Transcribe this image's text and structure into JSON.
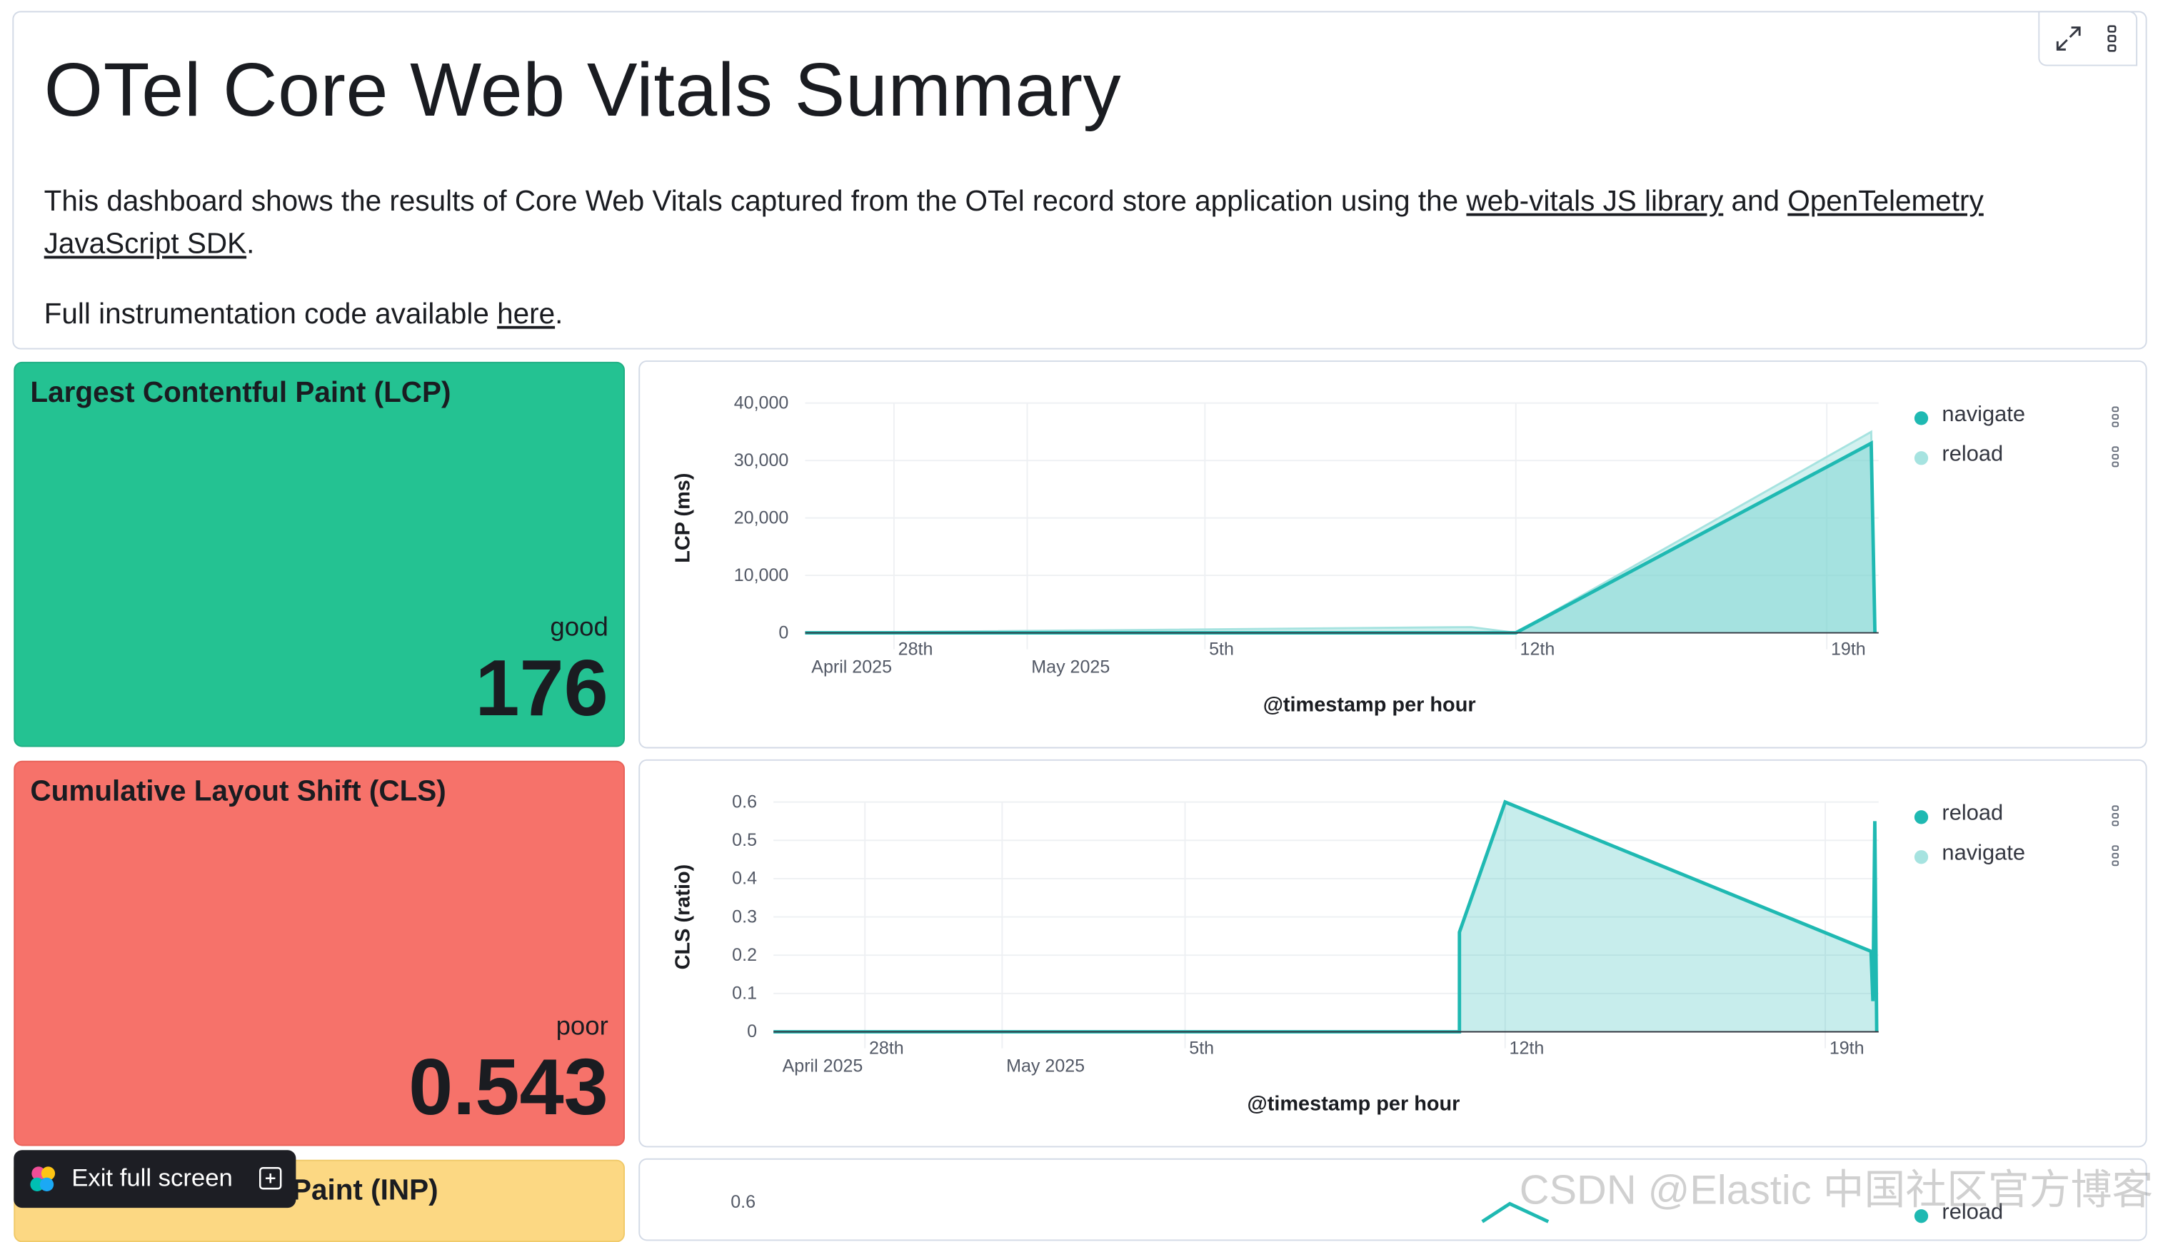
{
  "markdown": {
    "title": "OTel Core Web Vitals Summary",
    "para_prefix": "This dashboard shows the results of Core Web Vitals captured from the OTel record store application using the ",
    "link1": "web-vitals JS library",
    "para_mid": " and ",
    "link2": "OpenTelemetry JavaScript SDK",
    "para_suffix": ".",
    "para2_prefix": "Full instrumentation code available ",
    "link3": "here",
    "para2_suffix": "."
  },
  "panel_actions": {
    "maximize_icon": "maximize-icon",
    "options_icon": "vertical-dots-icon"
  },
  "metrics": [
    {
      "title": "Largest Contentful Paint (LCP)",
      "rating": "good",
      "value": "176",
      "color": "#24c292"
    },
    {
      "title": "Cumulative Layout Shift (CLS)",
      "rating": "poor",
      "value": "0.543",
      "color": "#f6726a"
    },
    {
      "title": "Interaction to Next Paint (INP)",
      "color": "#fcd883"
    }
  ],
  "chart_data": [
    {
      "type": "area",
      "ylabel": "LCP (ms)",
      "xlabel": "@timestamp per hour",
      "ylim": [
        0,
        40000
      ],
      "yticks": [
        "40,000",
        "30,000",
        "20,000",
        "10,000",
        "0"
      ],
      "xticks": [
        {
          "label": "28th",
          "sub": "April 2025",
          "date": "2025-04-28"
        },
        {
          "label": "",
          "sub": "May 2025",
          "date": "2025-05-01"
        },
        {
          "label": "5th",
          "sub": "",
          "date": "2025-05-05"
        },
        {
          "label": "12th",
          "sub": "",
          "date": "2025-05-12"
        },
        {
          "label": "19th",
          "sub": "",
          "date": "2025-05-19"
        }
      ],
      "legend": [
        "navigate",
        "reload"
      ],
      "legend_position": "right",
      "series": [
        {
          "name": "navigate",
          "color": "#1fb9b2",
          "points": [
            [
              "2025-04-26",
              0
            ],
            [
              "2025-05-12",
              0
            ],
            [
              "2025-05-20",
              33000
            ],
            [
              "2025-05-20T02",
              0
            ]
          ]
        },
        {
          "name": "reload",
          "color": "#a6e3e0",
          "points": [
            [
              "2025-04-26",
              0
            ],
            [
              "2025-05-11",
              1000
            ],
            [
              "2025-05-12",
              0
            ],
            [
              "2025-05-20",
              35000
            ],
            [
              "2025-05-20T02",
              0
            ]
          ]
        }
      ]
    },
    {
      "type": "area",
      "ylabel": "CLS (ratio)",
      "xlabel": "@timestamp per hour",
      "ylim": [
        0,
        0.6
      ],
      "yticks": [
        "0.6",
        "0.5",
        "0.4",
        "0.3",
        "0.2",
        "0.1",
        "0"
      ],
      "xticks": [
        {
          "label": "28th",
          "sub": "April 2025",
          "date": "2025-04-28"
        },
        {
          "label": "",
          "sub": "May 2025",
          "date": "2025-05-01"
        },
        {
          "label": "5th",
          "sub": "",
          "date": "2025-05-05"
        },
        {
          "label": "12th",
          "sub": "",
          "date": "2025-05-12"
        },
        {
          "label": "19th",
          "sub": "",
          "date": "2025-05-19"
        }
      ],
      "legend": [
        "reload",
        "navigate"
      ],
      "legend_position": "right",
      "series": [
        {
          "name": "reload",
          "color": "#1fb9b2",
          "points": [
            [
              "2025-04-26",
              0
            ],
            [
              "2025-05-11",
              0
            ],
            [
              "2025-05-11",
              0.26
            ],
            [
              "2025-05-12",
              0.6
            ],
            [
              "2025-05-20",
              0.21
            ],
            [
              "2025-05-20T01",
              0.08
            ],
            [
              "2025-05-20T02",
              0.55
            ],
            [
              "2025-05-20T03",
              0
            ]
          ]
        }
      ]
    },
    {
      "type": "area",
      "yticks": [
        "0.6"
      ],
      "legend": [
        "reload"
      ],
      "legend_position": "right"
    }
  ],
  "exit_button": {
    "label": "Exit full screen",
    "icon": "elastic-logo-icon",
    "kbd_icon": "fullscreen-exit-icon"
  },
  "watermark": "CSDN @Elastic 中国社区官方博客"
}
